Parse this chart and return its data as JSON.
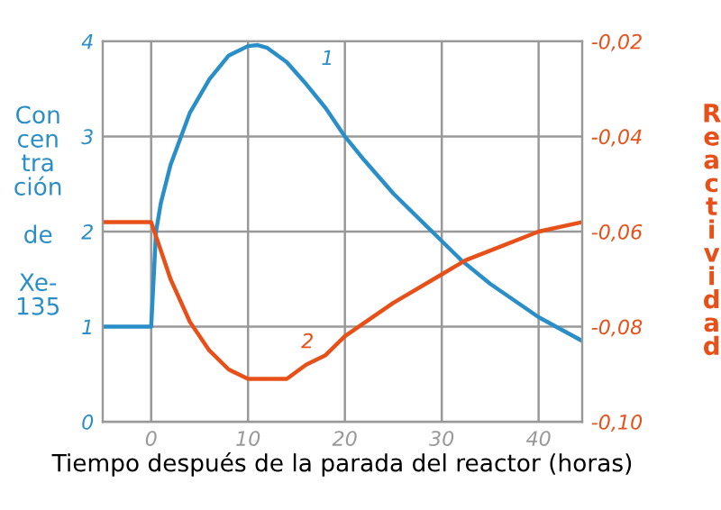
{
  "chart_data": {
    "type": "line",
    "xlabel": "Tiempo después de la parada del reactor (horas)",
    "ylabel": "Con\ncen\ntra\nción\n\nde\n\nXe-\n135",
    "y2label": "Reactividad",
    "xlim": [
      -5,
      44.5
    ],
    "xticks": [
      0,
      10,
      20,
      30,
      40
    ],
    "ylim": [
      0,
      4
    ],
    "yticks": [
      0,
      1,
      2,
      3,
      4
    ],
    "y2lim": [
      -0.1,
      -0.02
    ],
    "y2ticks": [
      {
        "value": -0.02,
        "label": "-0,02"
      },
      {
        "value": -0.04,
        "label": "-0,04"
      },
      {
        "value": -0.06,
        "label": "-0,06"
      },
      {
        "value": -0.08,
        "label": "-0,08"
      },
      {
        "value": -0.1,
        "label": "-0,10"
      }
    ],
    "grid": true,
    "series": [
      {
        "color": "#2a8fc8",
        "x": [
          -5,
          0,
          0.5,
          1,
          2,
          4,
          6,
          8,
          10,
          11,
          12,
          14,
          16,
          18,
          20,
          22,
          25,
          30,
          32,
          35,
          40,
          44.5
        ],
        "values": [
          1,
          1,
          2.0,
          2.3,
          2.7,
          3.25,
          3.6,
          3.85,
          3.95,
          3.96,
          3.93,
          3.78,
          3.55,
          3.3,
          3.0,
          2.75,
          2.4,
          1.9,
          1.7,
          1.45,
          1.1,
          0.85
        ]
      },
      {
        "color": "#e8501a",
        "axis": "y2",
        "x": [
          -5,
          0,
          1,
          2,
          4,
          6,
          8,
          10,
          12,
          14,
          16,
          18,
          20,
          25,
          30,
          32.5,
          35,
          40,
          44.5
        ],
        "values": [
          -0.058,
          -0.058,
          -0.064,
          -0.07,
          -0.079,
          -0.085,
          -0.089,
          -0.091,
          -0.091,
          -0.091,
          -0.088,
          -0.086,
          -0.082,
          -0.075,
          -0.069,
          -0.066,
          -0.064,
          -0.06,
          -0.058
        ]
      }
    ],
    "annotations": [
      {
        "text": "1",
        "x": 16,
        "y": 3.55
      },
      {
        "text": "2",
        "x": 16,
        "y": 0.6
      }
    ]
  }
}
